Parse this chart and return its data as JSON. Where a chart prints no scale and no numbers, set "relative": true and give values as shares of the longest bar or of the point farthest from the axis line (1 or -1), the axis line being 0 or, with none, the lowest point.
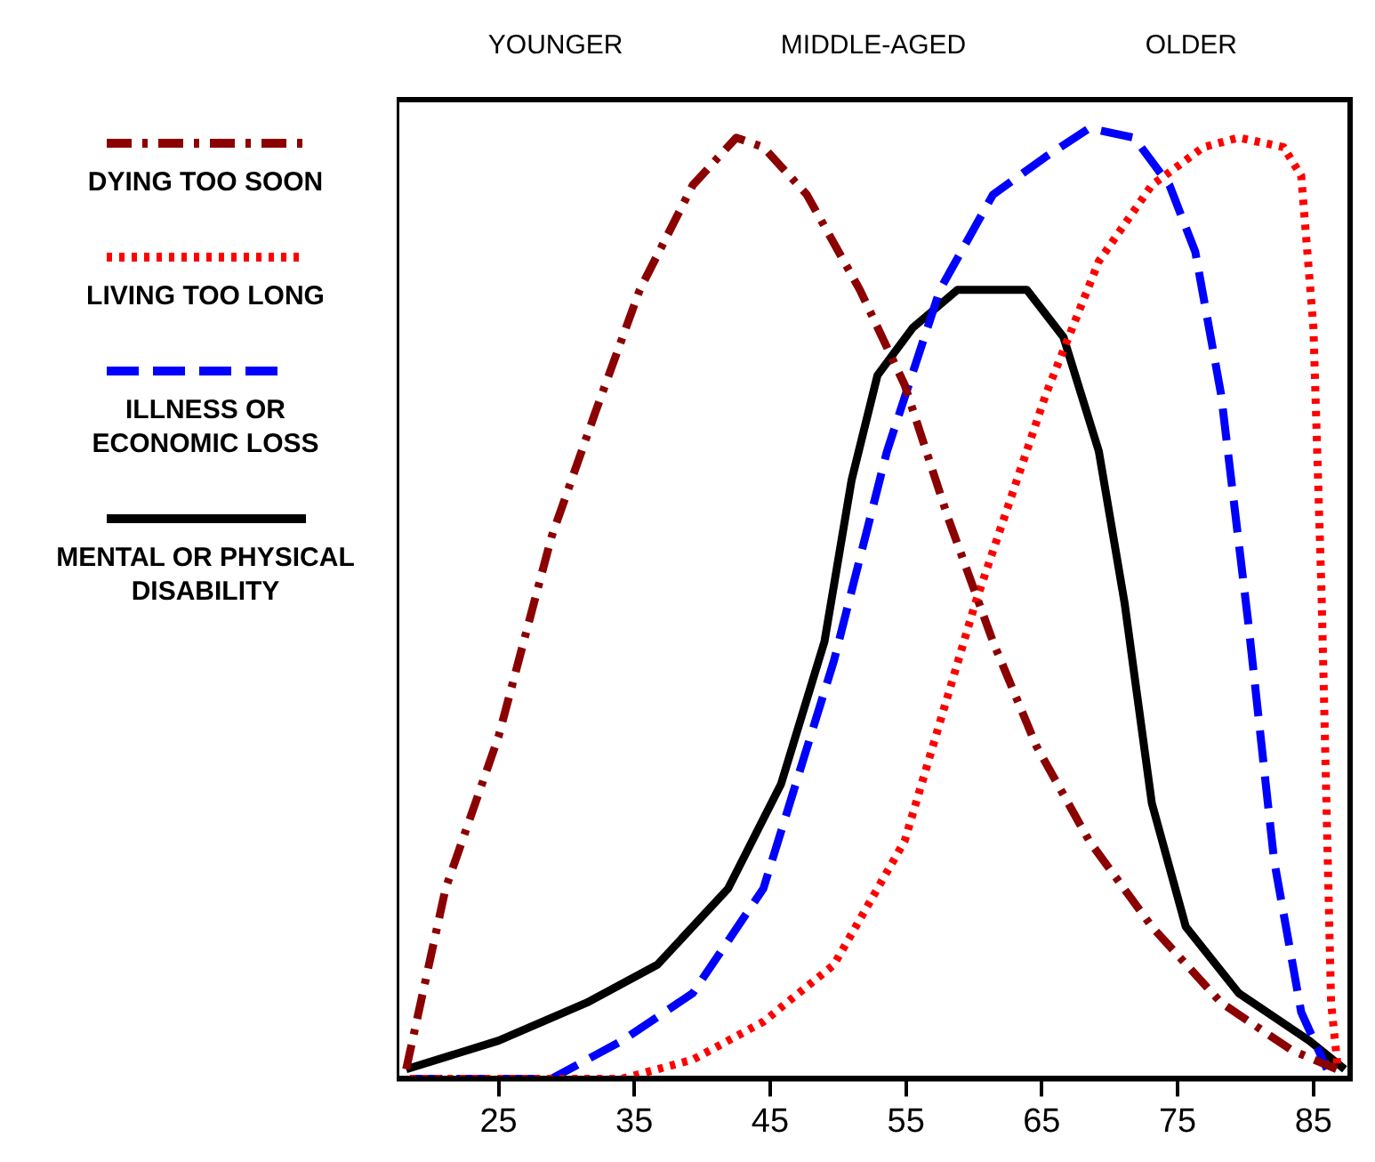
{
  "chart_data": {
    "type": "line",
    "relative": true,
    "legend": "left",
    "grid": false,
    "marker": "none",
    "annotations": [
      "YOUNGER",
      "MIDDLE-AGED",
      "OLDER"
    ],
    "xlim": [
      17.5,
      87.7
    ],
    "xticks": [
      25,
      35,
      45,
      55,
      65,
      75,
      85
    ],
    "tick_labels": "x",
    "series": [
      {
        "name": "DYING TOO SOON",
        "color": "#8b0000",
        "line_style": "dashdot",
        "x": [
          18.2,
          21.1,
          25,
          28.9,
          32.1,
          35.4,
          39.3,
          42.5,
          44.5,
          47.7,
          51.6,
          54.9,
          58.1,
          61.4,
          64.6,
          68.5,
          73.1,
          78.2,
          83.4,
          86.7
        ],
        "values": [
          0.01,
          0.2,
          0.36,
          0.57,
          0.7,
          0.83,
          0.94,
          0.99,
          0.98,
          0.93,
          0.83,
          0.73,
          0.59,
          0.46,
          0.35,
          0.25,
          0.16,
          0.08,
          0.03,
          0.01
        ]
      },
      {
        "name": "LIVING TOO LONG",
        "color": "#ff0000",
        "line_style": "dotted",
        "x": [
          18.5,
          26.3,
          34.1,
          39.3,
          44.5,
          49.7,
          54.9,
          60.1,
          65.3,
          69.2,
          73.1,
          76.9,
          79.5,
          82.8,
          84.1,
          85,
          85.6,
          86.3,
          86.8
        ],
        "values": [
          0,
          0,
          0,
          0.02,
          0.06,
          0.12,
          0.25,
          0.5,
          0.72,
          0.86,
          0.94,
          0.98,
          0.99,
          0.98,
          0.95,
          0.79,
          0.51,
          0.08,
          0.01
        ]
      },
      {
        "name": "ILLNESS OR ECONOMIC LOSS",
        "color": "#0000ff",
        "line_style": "dashed",
        "x": [
          18.5,
          28.9,
          34.1,
          39.3,
          44.5,
          49.7,
          53.6,
          57.5,
          61.4,
          65.3,
          68.5,
          71.8,
          74.4,
          76.3,
          78.2,
          80.2,
          82.1,
          84.1,
          86
        ],
        "values": [
          0,
          0,
          0.04,
          0.09,
          0.2,
          0.44,
          0.66,
          0.83,
          0.93,
          0.97,
          1,
          0.99,
          0.94,
          0.87,
          0.72,
          0.48,
          0.23,
          0.07,
          0.01
        ]
      },
      {
        "name": "MENTAL OR PHYSICAL DISABILITY",
        "color": "#000000",
        "line_style": "solid",
        "x": [
          18.2,
          25,
          31.5,
          36.7,
          41.9,
          45.8,
          49,
          51,
          52.9,
          55.5,
          58.8,
          63.9,
          66.6,
          69.2,
          71.1,
          73.1,
          75.6,
          79.5,
          84.7,
          87.3
        ],
        "values": [
          0.01,
          0.04,
          0.08,
          0.12,
          0.2,
          0.31,
          0.46,
          0.63,
          0.74,
          0.79,
          0.83,
          0.83,
          0.78,
          0.66,
          0.5,
          0.29,
          0.16,
          0.09,
          0.04,
          0.01
        ]
      }
    ]
  }
}
